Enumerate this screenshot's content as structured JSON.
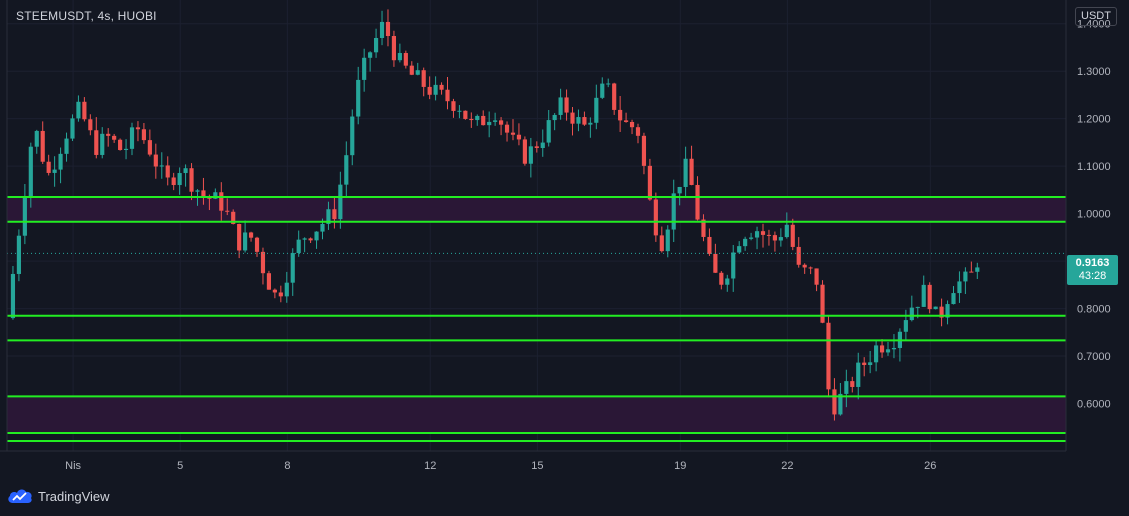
{
  "header": {
    "symbol_title": "STEEMUSDT, 4s, HUOBI",
    "currency": "USDT"
  },
  "footer": {
    "brand": "TradingView"
  },
  "price_label": {
    "value": "0.9163",
    "countdown": "43:28"
  },
  "colors": {
    "background": "#131722",
    "up": "#26a69a",
    "down": "#ef5350",
    "level_line": "#22ee22",
    "zone_fill": "#2a1736",
    "grid": "#1c2030"
  },
  "chart_data": {
    "type": "candlestick",
    "title": "STEEMUSDT, 4s, HUOBI",
    "xlabel": "",
    "ylabel": "",
    "ylim": [
      0.5,
      1.45
    ],
    "y_ticks": [
      "1.4000",
      "1.3000",
      "1.2000",
      "1.1000",
      "1.0000",
      "0.9000",
      "0.8000",
      "0.7000",
      "0.6000"
    ],
    "x_ticks": [
      {
        "label": "Nis",
        "day": 2
      },
      {
        "label": "5",
        "day": 5
      },
      {
        "label": "8",
        "day": 8
      },
      {
        "label": "12",
        "day": 12
      },
      {
        "label": "15",
        "day": 15
      },
      {
        "label": "19",
        "day": 19
      },
      {
        "label": "22",
        "day": 22
      },
      {
        "label": "26",
        "day": 26
      }
    ],
    "x_range_days": [
      0.15,
      29.8
    ],
    "candles_per_day": 6,
    "last_price": 0.9163,
    "horizontal_levels": [
      1.035,
      0.983,
      0.785,
      0.733,
      0.615,
      0.538,
      0.521
    ],
    "zones": [
      [
        0.983,
        1.035
      ],
      [
        0.538,
        0.615
      ]
    ],
    "anchor_closes": [
      [
        0.15,
        0.78
      ],
      [
        0.4,
        0.92
      ],
      [
        0.9,
        1.19
      ],
      [
        1.3,
        1.08
      ],
      [
        1.8,
        1.17
      ],
      [
        2.2,
        1.22
      ],
      [
        2.6,
        1.14
      ],
      [
        3.0,
        1.16
      ],
      [
        3.4,
        1.13
      ],
      [
        3.8,
        1.18
      ],
      [
        4.2,
        1.13
      ],
      [
        4.6,
        1.06
      ],
      [
        5.0,
        1.1
      ],
      [
        5.6,
        1.04
      ],
      [
        6.2,
        1.02
      ],
      [
        6.6,
        0.94
      ],
      [
        7.0,
        0.95
      ],
      [
        7.4,
        0.87
      ],
      [
        7.7,
        0.82
      ],
      [
        8.0,
        0.88
      ],
      [
        8.4,
        0.95
      ],
      [
        8.8,
        0.97
      ],
      [
        9.3,
        1.0
      ],
      [
        9.6,
        1.1
      ],
      [
        9.9,
        1.25
      ],
      [
        10.3,
        1.34
      ],
      [
        10.7,
        1.4
      ],
      [
        11.1,
        1.32
      ],
      [
        11.5,
        1.29
      ],
      [
        12.2,
        1.25
      ],
      [
        12.8,
        1.23
      ],
      [
        13.2,
        1.18
      ],
      [
        13.8,
        1.22
      ],
      [
        14.3,
        1.15
      ],
      [
        14.7,
        1.12
      ],
      [
        15.2,
        1.17
      ],
      [
        15.7,
        1.23
      ],
      [
        16.3,
        1.18
      ],
      [
        16.9,
        1.27
      ],
      [
        17.4,
        1.19
      ],
      [
        17.8,
        1.18
      ],
      [
        18.2,
        1.0
      ],
      [
        18.5,
        0.94
      ],
      [
        18.9,
        1.06
      ],
      [
        19.2,
        1.1
      ],
      [
        19.5,
        0.99
      ],
      [
        19.9,
        0.87
      ],
      [
        20.2,
        0.86
      ],
      [
        20.7,
        0.96
      ],
      [
        21.1,
        0.97
      ],
      [
        21.6,
        0.94
      ],
      [
        22.0,
        0.98
      ],
      [
        22.3,
        0.88
      ],
      [
        22.8,
        0.87
      ],
      [
        23.0,
        0.75
      ],
      [
        23.2,
        0.59
      ],
      [
        23.6,
        0.62
      ],
      [
        24.0,
        0.67
      ],
      [
        24.5,
        0.72
      ],
      [
        25.0,
        0.74
      ],
      [
        25.4,
        0.8
      ],
      [
        25.9,
        0.84
      ],
      [
        26.2,
        0.77
      ],
      [
        26.6,
        0.85
      ],
      [
        27.1,
        0.86
      ],
      [
        27.4,
        0.92
      ]
    ]
  }
}
